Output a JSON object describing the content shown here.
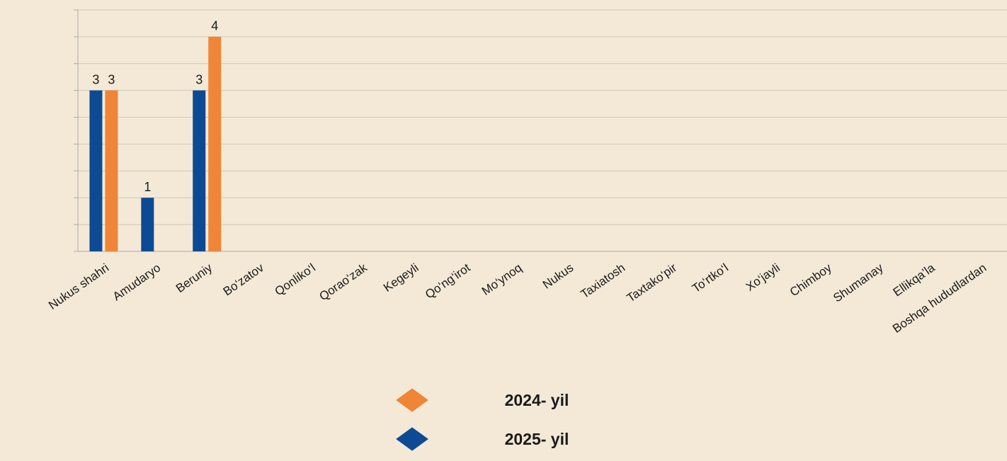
{
  "chart_data": {
    "type": "bar",
    "categories": [
      "Nukus shahri",
      "Amudaryo",
      "Beruniy",
      "Bo‘zatov",
      "Qonliko‘l",
      "Qorao‘zak",
      "Kegeyli",
      "Qo‘ng‘irot",
      "Mo‘ynoq",
      "Nukus",
      "Taxiatosh",
      "Taxtako‘pir",
      "To‘rtko‘l",
      "Xo‘jayli",
      "Chimboy",
      "Shumanay",
      "Ellikqa’la",
      "Boshqa hududlardan"
    ],
    "series": [
      {
        "name": "2024- yil",
        "color": "#ef8536",
        "values": [
          3,
          null,
          4,
          null,
          null,
          null,
          null,
          null,
          null,
          null,
          null,
          null,
          null,
          null,
          null,
          null,
          null,
          null
        ]
      },
      {
        "name": "2025- yil",
        "color": "#0d4a94",
        "values": [
          3,
          1,
          3,
          null,
          null,
          null,
          null,
          null,
          null,
          null,
          null,
          null,
          null,
          null,
          null,
          null,
          null,
          null
        ]
      }
    ],
    "ylim": [
      0,
      4.5
    ],
    "yticks": [
      0,
      0.5,
      1,
      1.5,
      2,
      2.5,
      3,
      3.5,
      4,
      4.5
    ],
    "grid": true
  }
}
